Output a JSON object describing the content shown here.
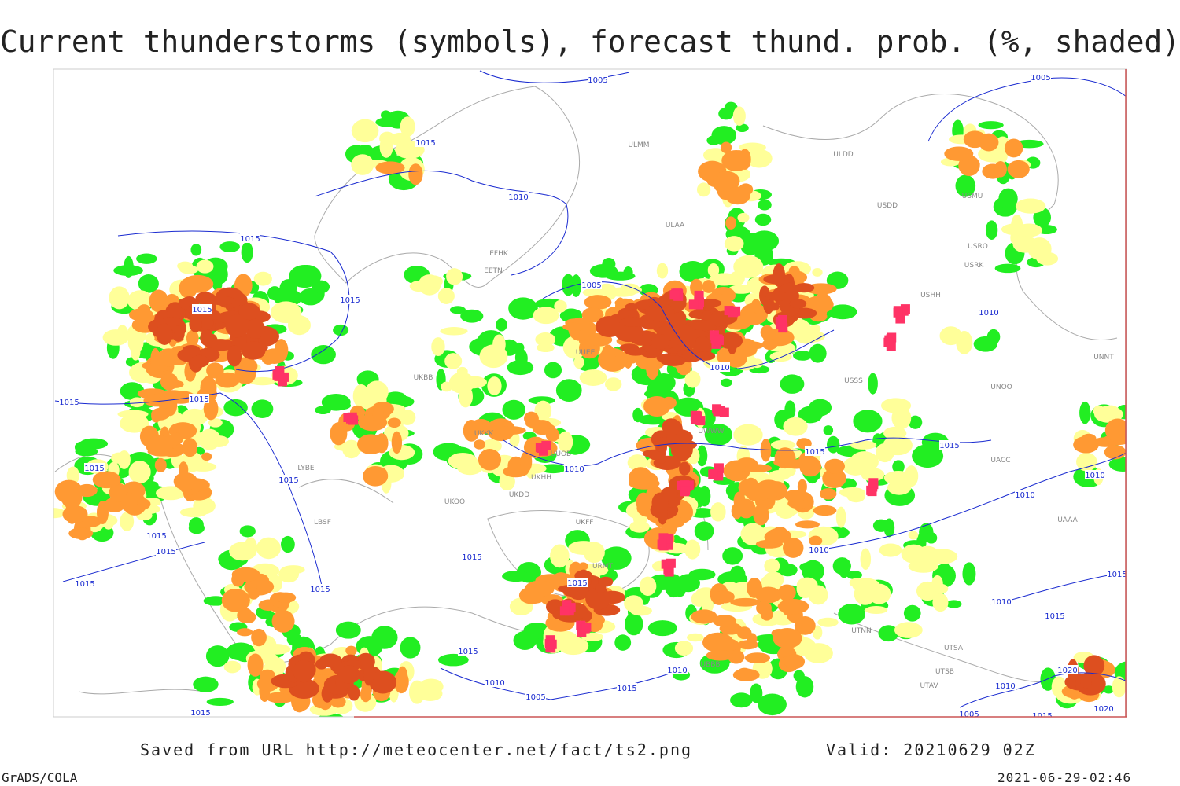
{
  "header": {
    "title": "Current thunderstorms (symbols), forecast thund. prob. (%, shaded)"
  },
  "isobar_labels": [
    "1005",
    "1005",
    "1015",
    "1010",
    "1015",
    "1015",
    "1015",
    "1005",
    "1010",
    "1010",
    "1015",
    "1015",
    "1015",
    "1015",
    "1010",
    "1015",
    "1015",
    "1010",
    "1010",
    "1015",
    "1015",
    "1015",
    "1015",
    "1015",
    "1015",
    "1010",
    "1015",
    "1010",
    "1015",
    "1015",
    "1010",
    "1005",
    "1015",
    "1010",
    "1015",
    "1020",
    "1020",
    "1005",
    "1015",
    "1010"
  ],
  "station_labels": [
    "ULMM",
    "ULDD",
    "ULAA",
    "EFHK",
    "EETN",
    "USMU",
    "USDD",
    "USRO",
    "USRK",
    "USHH",
    "UNNT",
    "UNOO",
    "USSS",
    "UACC",
    "UAAA",
    "UTSA",
    "UTSB",
    "UTAV",
    "UTNN",
    "UBBB",
    "UKKK",
    "UKBB",
    "LBSF",
    "LYBE",
    "UKOO",
    "UKFF",
    "URMT",
    "UKDD",
    "UKHH",
    "UUOB",
    "UWWW",
    "UUEE"
  ],
  "footer": {
    "source": "Saved from URL http://meteocenter.net/fact/ts2.png",
    "valid": "Valid: 20210629 02Z",
    "software": "GrADS/COLA",
    "timestamp": "2021-06-29-02:46"
  }
}
